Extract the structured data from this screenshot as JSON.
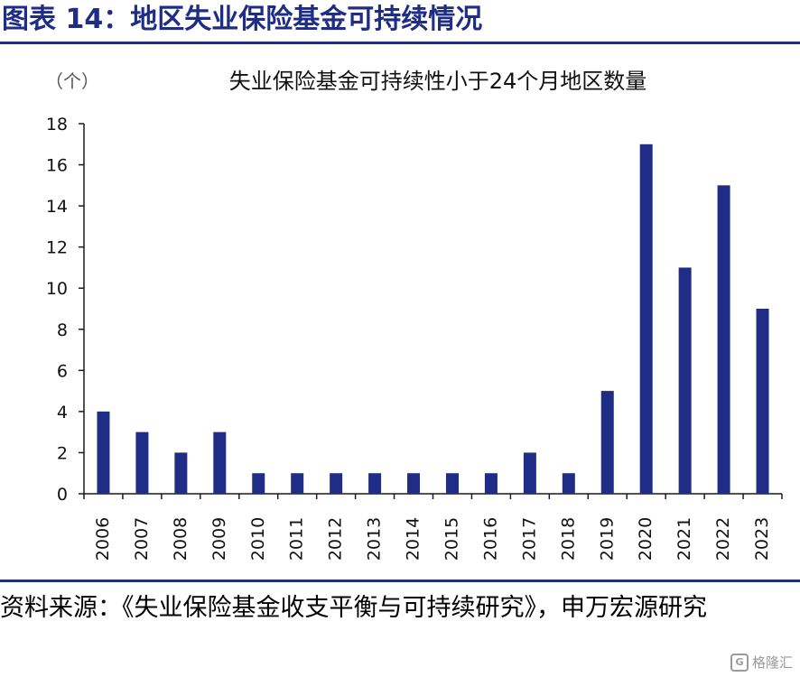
{
  "figure_title": "图表 14：地区失业保险基金可持续情况",
  "source_text": "资料来源：《失业保险基金收支平衡与可持续研究》，申万宏源研究",
  "watermark": {
    "logo_glyph": "G",
    "text": "格隆汇"
  },
  "colors": {
    "bar": "#1f2d86",
    "title": "#1f2d86",
    "axis": "#1a1a1a"
  },
  "chart_data": {
    "type": "bar",
    "title": "失业保险基金可持续性小于24个月地区数量",
    "unit_label": "（个）",
    "xlabel": "",
    "ylabel": "",
    "categories": [
      "2006",
      "2007",
      "2008",
      "2009",
      "2010",
      "2011",
      "2012",
      "2013",
      "2014",
      "2015",
      "2016",
      "2017",
      "2018",
      "2019",
      "2020",
      "2021",
      "2022",
      "2023"
    ],
    "values": [
      4,
      3,
      2,
      3,
      1,
      1,
      1,
      1,
      1,
      1,
      1,
      2,
      1,
      5,
      17,
      11,
      15,
      9
    ],
    "ylim": [
      0,
      18
    ],
    "yticks": [
      "0",
      "2",
      "4",
      "6",
      "8",
      "10",
      "12",
      "14",
      "16",
      "18"
    ],
    "grid": false,
    "legend": "none"
  }
}
